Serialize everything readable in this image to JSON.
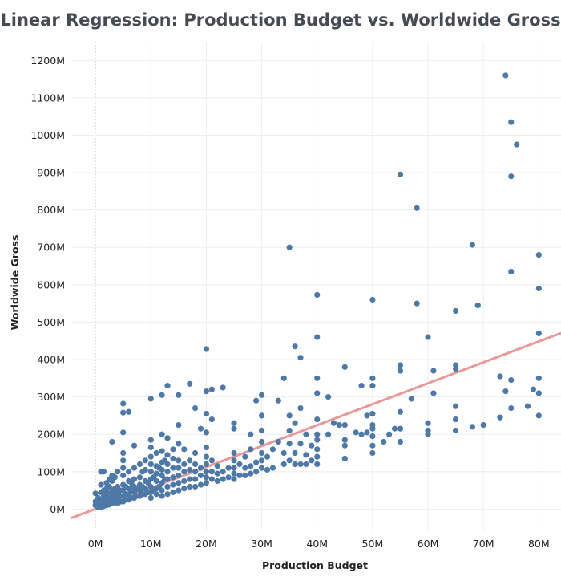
{
  "chart_data": {
    "type": "scatter",
    "title": "Linear Regression: Production Budget vs. Worldwide Gross",
    "xlabel": "Production Budget",
    "ylabel": "Worldwide Gross",
    "x_unit": "M",
    "y_unit": "M",
    "xlim": [
      -4.5,
      84
    ],
    "ylim": [
      -55,
      1250
    ],
    "x_ticks": [
      "0M",
      "10M",
      "20M",
      "30M",
      "40M",
      "50M",
      "60M",
      "70M",
      "80M"
    ],
    "y_ticks": [
      "0M",
      "100M",
      "200M",
      "300M",
      "400M",
      "500M",
      "600M",
      "700M",
      "800M",
      "900M",
      "1000M",
      "1100M",
      "1200M"
    ],
    "grid": true,
    "point_color": "#4e79a7",
    "trend_color": "#e8999a",
    "trendline": {
      "slope": 5.6,
      "intercept": 0.5
    },
    "points": [
      [
        0,
        10
      ],
      [
        0,
        20
      ],
      [
        0,
        42
      ],
      [
        0.5,
        5
      ],
      [
        0.5,
        15
      ],
      [
        0.5,
        30
      ],
      [
        1,
        5
      ],
      [
        1,
        12
      ],
      [
        1,
        25
      ],
      [
        1,
        45
      ],
      [
        1,
        65
      ],
      [
        1,
        100
      ],
      [
        1.5,
        8
      ],
      [
        1.5,
        20
      ],
      [
        1.5,
        35
      ],
      [
        1.5,
        50
      ],
      [
        1.5,
        100
      ],
      [
        2,
        10
      ],
      [
        2,
        18
      ],
      [
        2,
        30
      ],
      [
        2,
        45
      ],
      [
        2,
        55
      ],
      [
        2,
        70
      ],
      [
        2.5,
        12
      ],
      [
        2.5,
        25
      ],
      [
        2.5,
        40
      ],
      [
        2.5,
        60
      ],
      [
        2.5,
        80
      ],
      [
        3,
        15
      ],
      [
        3,
        25
      ],
      [
        3,
        35
      ],
      [
        3,
        50
      ],
      [
        3,
        75
      ],
      [
        3,
        90
      ],
      [
        3,
        180
      ],
      [
        3.5,
        20
      ],
      [
        3.5,
        40
      ],
      [
        3.5,
        55
      ],
      [
        3.5,
        85
      ],
      [
        4,
        15
      ],
      [
        4,
        30
      ],
      [
        4,
        45
      ],
      [
        4,
        60
      ],
      [
        4,
        100
      ],
      [
        4.5,
        20
      ],
      [
        4.5,
        35
      ],
      [
        4.5,
        50
      ],
      [
        5,
        20
      ],
      [
        5,
        35
      ],
      [
        5,
        50
      ],
      [
        5,
        65
      ],
      [
        5,
        90
      ],
      [
        5,
        110
      ],
      [
        5,
        130
      ],
      [
        5,
        150
      ],
      [
        5,
        205
      ],
      [
        5,
        258
      ],
      [
        5,
        282
      ],
      [
        5.5,
        25
      ],
      [
        5.5,
        40
      ],
      [
        5.5,
        60
      ],
      [
        6,
        25
      ],
      [
        6,
        40
      ],
      [
        6,
        55
      ],
      [
        6,
        75
      ],
      [
        6,
        100
      ],
      [
        6,
        260
      ],
      [
        6.5,
        30
      ],
      [
        6.5,
        50
      ],
      [
        6.5,
        70
      ],
      [
        7,
        30
      ],
      [
        7,
        45
      ],
      [
        7,
        60
      ],
      [
        7,
        80
      ],
      [
        7,
        110
      ],
      [
        7,
        170
      ],
      [
        7.5,
        35
      ],
      [
        7.5,
        55
      ],
      [
        8,
        35
      ],
      [
        8,
        50
      ],
      [
        8,
        65
      ],
      [
        8,
        85
      ],
      [
        8,
        120
      ],
      [
        8.5,
        40
      ],
      [
        8.5,
        60
      ],
      [
        8.5,
        100
      ],
      [
        9,
        40
      ],
      [
        9,
        55
      ],
      [
        9,
        75
      ],
      [
        9,
        105
      ],
      [
        9,
        130
      ],
      [
        9.5,
        45
      ],
      [
        9.5,
        70
      ],
      [
        10,
        30
      ],
      [
        10,
        45
      ],
      [
        10,
        60
      ],
      [
        10,
        80
      ],
      [
        10,
        100
      ],
      [
        10,
        120
      ],
      [
        10,
        140
      ],
      [
        10,
        165
      ],
      [
        10,
        185
      ],
      [
        10,
        295
      ],
      [
        10.5,
        50
      ],
      [
        10.5,
        85
      ],
      [
        11,
        40
      ],
      [
        11,
        55
      ],
      [
        11,
        75
      ],
      [
        11,
        95
      ],
      [
        11,
        115
      ],
      [
        11,
        150
      ],
      [
        11.5,
        60
      ],
      [
        11.5,
        110
      ],
      [
        12,
        35
      ],
      [
        12,
        50
      ],
      [
        12,
        70
      ],
      [
        12,
        90
      ],
      [
        12,
        105
      ],
      [
        12,
        125
      ],
      [
        12,
        155
      ],
      [
        12,
        200
      ],
      [
        12,
        305
      ],
      [
        12.5,
        80
      ],
      [
        12.5,
        130
      ],
      [
        13,
        40
      ],
      [
        13,
        60
      ],
      [
        13,
        80
      ],
      [
        13,
        100
      ],
      [
        13,
        120
      ],
      [
        13,
        145
      ],
      [
        13,
        190
      ],
      [
        13,
        330
      ],
      [
        14,
        45
      ],
      [
        14,
        65
      ],
      [
        14,
        85
      ],
      [
        14,
        110
      ],
      [
        14,
        135
      ],
      [
        14,
        160
      ],
      [
        15,
        50
      ],
      [
        15,
        70
      ],
      [
        15,
        90
      ],
      [
        15,
        110
      ],
      [
        15,
        130
      ],
      [
        15,
        175
      ],
      [
        15,
        225
      ],
      [
        15,
        305
      ],
      [
        16,
        55
      ],
      [
        16,
        75
      ],
      [
        16,
        100
      ],
      [
        16,
        120
      ],
      [
        16,
        160
      ],
      [
        17,
        60
      ],
      [
        17,
        80
      ],
      [
        17,
        105
      ],
      [
        17,
        130
      ],
      [
        17,
        335
      ],
      [
        18,
        60
      ],
      [
        18,
        80
      ],
      [
        18,
        100
      ],
      [
        18,
        120
      ],
      [
        18,
        150
      ],
      [
        18,
        270
      ],
      [
        19,
        65
      ],
      [
        19,
        90
      ],
      [
        19,
        110
      ],
      [
        19,
        215
      ],
      [
        20,
        70
      ],
      [
        20,
        85
      ],
      [
        20,
        100
      ],
      [
        20,
        120
      ],
      [
        20,
        140
      ],
      [
        20,
        165
      ],
      [
        20,
        205
      ],
      [
        20,
        255
      ],
      [
        20,
        315
      ],
      [
        20,
        428
      ],
      [
        21,
        80
      ],
      [
        21,
        100
      ],
      [
        21,
        130
      ],
      [
        21,
        240
      ],
      [
        21,
        320
      ],
      [
        22,
        75
      ],
      [
        22,
        95
      ],
      [
        22,
        115
      ],
      [
        23,
        80
      ],
      [
        23,
        100
      ],
      [
        23,
        325
      ],
      [
        24,
        85
      ],
      [
        24,
        110
      ],
      [
        25,
        80
      ],
      [
        25,
        95
      ],
      [
        25,
        110
      ],
      [
        25,
        130
      ],
      [
        25,
        150
      ],
      [
        25,
        215
      ],
      [
        25,
        230
      ],
      [
        26,
        90
      ],
      [
        26,
        120
      ],
      [
        27,
        90
      ],
      [
        27,
        110
      ],
      [
        27,
        140
      ],
      [
        28,
        95
      ],
      [
        28,
        115
      ],
      [
        28,
        160
      ],
      [
        28,
        200
      ],
      [
        29,
        100
      ],
      [
        29,
        125
      ],
      [
        29,
        290
      ],
      [
        30,
        110
      ],
      [
        30,
        130
      ],
      [
        30,
        150
      ],
      [
        30,
        180
      ],
      [
        30,
        210
      ],
      [
        30,
        250
      ],
      [
        30,
        305
      ],
      [
        31,
        105
      ],
      [
        31,
        140
      ],
      [
        32,
        110
      ],
      [
        32,
        160
      ],
      [
        33,
        180
      ],
      [
        33,
        290
      ],
      [
        34,
        120
      ],
      [
        34,
        150
      ],
      [
        34,
        350
      ],
      [
        35,
        130
      ],
      [
        35,
        175
      ],
      [
        35,
        210
      ],
      [
        35,
        250
      ],
      [
        35,
        700
      ],
      [
        36,
        120
      ],
      [
        36,
        150
      ],
      [
        36,
        230
      ],
      [
        36,
        435
      ],
      [
        37,
        120
      ],
      [
        37,
        175
      ],
      [
        37,
        270
      ],
      [
        37,
        405
      ],
      [
        38,
        120
      ],
      [
        38,
        145
      ],
      [
        38,
        200
      ],
      [
        39,
        130
      ],
      [
        39,
        170
      ],
      [
        40,
        120
      ],
      [
        40,
        140
      ],
      [
        40,
        160
      ],
      [
        40,
        185
      ],
      [
        40,
        200
      ],
      [
        40,
        240
      ],
      [
        40,
        310
      ],
      [
        40,
        350
      ],
      [
        40,
        460
      ],
      [
        40,
        573
      ],
      [
        42,
        200
      ],
      [
        42,
        300
      ],
      [
        43,
        230
      ],
      [
        44,
        225
      ],
      [
        45,
        135
      ],
      [
        45,
        170
      ],
      [
        45,
        185
      ],
      [
        45,
        225
      ],
      [
        45,
        380
      ],
      [
        47,
        205
      ],
      [
        48,
        200
      ],
      [
        48,
        330
      ],
      [
        49,
        250
      ],
      [
        49,
        205
      ],
      [
        50,
        150
      ],
      [
        50,
        170
      ],
      [
        50,
        195
      ],
      [
        50,
        215
      ],
      [
        50,
        225
      ],
      [
        50,
        255
      ],
      [
        50,
        330
      ],
      [
        50,
        350
      ],
      [
        50,
        560
      ],
      [
        52,
        180
      ],
      [
        53,
        200
      ],
      [
        54,
        215
      ],
      [
        55,
        180
      ],
      [
        55,
        215
      ],
      [
        55,
        260
      ],
      [
        55,
        370
      ],
      [
        55,
        385
      ],
      [
        55,
        895
      ],
      [
        57,
        295
      ],
      [
        58,
        550
      ],
      [
        58,
        805
      ],
      [
        60,
        200
      ],
      [
        60,
        210
      ],
      [
        60,
        230
      ],
      [
        60,
        460
      ],
      [
        61,
        310
      ],
      [
        61,
        370
      ],
      [
        65,
        210
      ],
      [
        65,
        240
      ],
      [
        65,
        275
      ],
      [
        65,
        375
      ],
      [
        65,
        385
      ],
      [
        65,
        530
      ],
      [
        68,
        220
      ],
      [
        68,
        707
      ],
      [
        69,
        545
      ],
      [
        70,
        225
      ],
      [
        73,
        245
      ],
      [
        73,
        355
      ],
      [
        74,
        315
      ],
      [
        74,
        1160
      ],
      [
        75,
        270
      ],
      [
        75,
        345
      ],
      [
        75,
        635
      ],
      [
        75,
        890
      ],
      [
        75,
        1035
      ],
      [
        76,
        975
      ],
      [
        78,
        275
      ],
      [
        79,
        320
      ],
      [
        80,
        250
      ],
      [
        80,
        310
      ],
      [
        80,
        350
      ],
      [
        80,
        470
      ],
      [
        80,
        590
      ],
      [
        80,
        680
      ]
    ]
  }
}
